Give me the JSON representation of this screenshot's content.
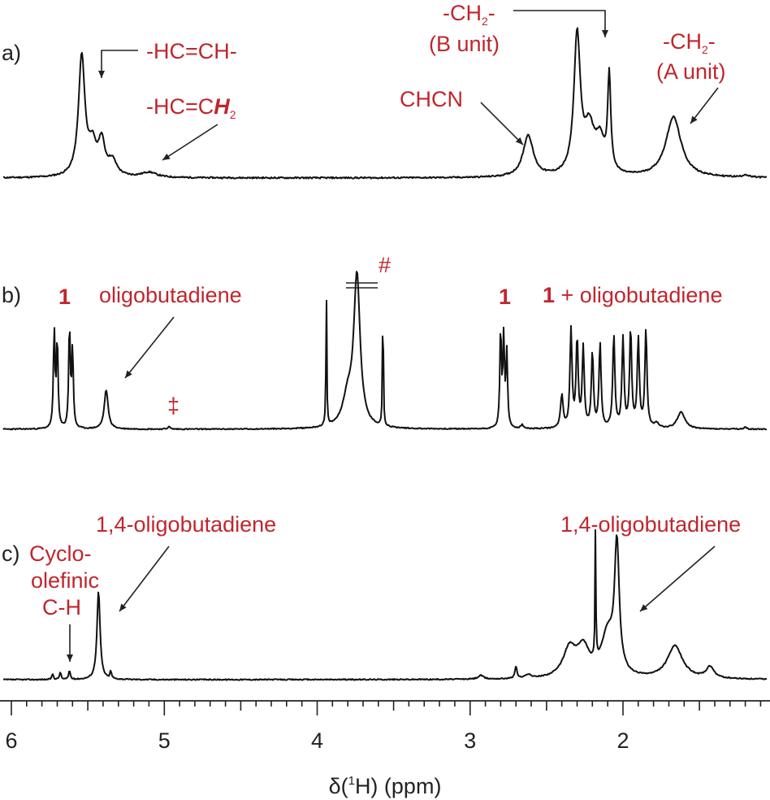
{
  "chart_data": {
    "type": "line",
    "xlabel": "δ(¹H) (ppm)",
    "xlabel_parts": {
      "pre": "δ(",
      "sup": "1",
      "post": "H) (ppm)"
    },
    "xlim": [
      6.15,
      1.15
    ],
    "x_reversed": true,
    "x_ticks": [
      "6",
      "5",
      "4",
      "3",
      "2"
    ],
    "grid": false,
    "legend": "none",
    "colors": {
      "trace": "#111111",
      "annotation": "#c0262d",
      "axis": "#222222"
    },
    "panels": [
      {
        "label": "a)",
        "peaks": [
          {
            "x": 5.54,
            "h": 0.95,
            "w": 0.025
          },
          {
            "x": 5.47,
            "h": 0.22,
            "w": 0.03
          },
          {
            "x": 5.41,
            "h": 0.26,
            "w": 0.025
          },
          {
            "x": 5.34,
            "h": 0.12,
            "w": 0.035
          },
          {
            "x": 5.1,
            "h": 0.04,
            "w": 0.06
          },
          {
            "x": 2.62,
            "h": 0.33,
            "w": 0.04
          },
          {
            "x": 2.3,
            "h": 1.1,
            "w": 0.025
          },
          {
            "x": 2.22,
            "h": 0.35,
            "w": 0.04
          },
          {
            "x": 2.15,
            "h": 0.25,
            "w": 0.035
          },
          {
            "x": 2.09,
            "h": 0.75,
            "w": 0.012
          },
          {
            "x": 1.67,
            "h": 0.48,
            "w": 0.06
          },
          {
            "x": 1.2,
            "h": 0.02,
            "w": 0.02
          }
        ],
        "annotations": [
          {
            "name": "alkene-ch",
            "lines": [
              "-HC=CH-"
            ]
          },
          {
            "name": "vinyl-ch2",
            "lines": [
              "-HC=C",
              "H",
              "2"
            ]
          },
          {
            "name": "chcn",
            "lines": [
              "CHCN"
            ]
          },
          {
            "name": "ch2-b-unit",
            "lines": [
              "-CH",
              "2",
              "-",
              "(B unit)"
            ]
          },
          {
            "name": "ch2-a-unit",
            "lines": [
              "-CH",
              "2",
              "-",
              "(A unit)"
            ]
          }
        ]
      },
      {
        "label": "b)",
        "peaks": [
          {
            "x": 5.72,
            "h": 1.05,
            "w": 0.006
          },
          {
            "x": 5.7,
            "h": 0.95,
            "w": 0.006
          },
          {
            "x": 5.62,
            "h": 1.1,
            "w": 0.006
          },
          {
            "x": 5.6,
            "h": 0.85,
            "w": 0.006
          },
          {
            "x": 5.38,
            "h": 0.42,
            "w": 0.015
          },
          {
            "x": 4.97,
            "h": 0.03,
            "w": 0.008
          },
          {
            "x": 3.94,
            "h": 1.5,
            "w": 0.003
          },
          {
            "x": 3.8,
            "h": 0.3,
            "w": 0.04
          },
          {
            "x": 3.74,
            "h": 1.6,
            "w": 0.025
          },
          {
            "x": 3.57,
            "h": 1.55,
            "w": 0.003
          },
          {
            "x": 2.8,
            "h": 1.05,
            "w": 0.006
          },
          {
            "x": 2.78,
            "h": 0.95,
            "w": 0.006
          },
          {
            "x": 2.76,
            "h": 0.8,
            "w": 0.006
          },
          {
            "x": 2.66,
            "h": 0.04,
            "w": 0.01
          },
          {
            "x": 2.4,
            "h": 0.35,
            "w": 0.01
          },
          {
            "x": 2.34,
            "h": 1.05,
            "w": 0.008
          },
          {
            "x": 2.3,
            "h": 0.95,
            "w": 0.008
          },
          {
            "x": 2.26,
            "h": 0.85,
            "w": 0.008
          },
          {
            "x": 2.2,
            "h": 0.8,
            "w": 0.008
          },
          {
            "x": 2.15,
            "h": 0.9,
            "w": 0.008
          },
          {
            "x": 2.06,
            "h": 1.0,
            "w": 0.008
          },
          {
            "x": 2.0,
            "h": 0.95,
            "w": 0.008
          },
          {
            "x": 1.95,
            "h": 1.05,
            "w": 0.008
          },
          {
            "x": 1.9,
            "h": 0.95,
            "w": 0.008
          },
          {
            "x": 1.85,
            "h": 1.05,
            "w": 0.008
          },
          {
            "x": 1.78,
            "h": 0.05,
            "w": 0.02
          },
          {
            "x": 1.62,
            "h": 0.18,
            "w": 0.03
          },
          {
            "x": 1.2,
            "h": 0.02,
            "w": 0.01
          }
        ],
        "annotations": [
          {
            "name": "compound-1-olefinic",
            "lines": [
              "1"
            ]
          },
          {
            "name": "oligobutadiene-olefinic",
            "lines": [
              "oligobutadiene"
            ]
          },
          {
            "name": "double-dagger",
            "lines": [
              "‡"
            ]
          },
          {
            "name": "hash",
            "lines": [
              "#"
            ]
          },
          {
            "name": "compound-1-allylic",
            "lines": [
              "1"
            ]
          },
          {
            "name": "compound-1-plus-oligobutadiene",
            "lines": [
              "1",
              " + oligobutadiene"
            ]
          }
        ]
      },
      {
        "label": "c)",
        "peaks": [
          {
            "x": 5.73,
            "h": 0.06,
            "w": 0.006
          },
          {
            "x": 5.68,
            "h": 0.08,
            "w": 0.006
          },
          {
            "x": 5.62,
            "h": 0.1,
            "w": 0.006
          },
          {
            "x": 5.43,
            "h": 0.95,
            "w": 0.012
          },
          {
            "x": 5.35,
            "h": 0.08,
            "w": 0.006
          },
          {
            "x": 2.93,
            "h": 0.04,
            "w": 0.02
          },
          {
            "x": 2.7,
            "h": 0.13,
            "w": 0.008
          },
          {
            "x": 2.62,
            "h": 0.04,
            "w": 0.02
          },
          {
            "x": 2.35,
            "h": 0.3,
            "w": 0.05
          },
          {
            "x": 2.26,
            "h": 0.3,
            "w": 0.05
          },
          {
            "x": 2.18,
            "h": 1.4,
            "w": 0.003
          },
          {
            "x": 2.1,
            "h": 0.45,
            "w": 0.05
          },
          {
            "x": 2.04,
            "h": 1.35,
            "w": 0.018
          },
          {
            "x": 1.66,
            "h": 0.35,
            "w": 0.06
          },
          {
            "x": 1.43,
            "h": 0.12,
            "w": 0.03
          }
        ],
        "annotations": [
          {
            "name": "cyclo-olefinic-ch",
            "lines": [
              "Cyclo-",
              "olefinic",
              "C-H"
            ]
          },
          {
            "name": "oligobutadiene-14-olefinic",
            "lines": [
              "1,4-oligobutadiene"
            ]
          },
          {
            "name": "oligobutadiene-14-aliphatic",
            "lines": [
              "1,4-oligobutadiene"
            ]
          }
        ]
      }
    ]
  }
}
